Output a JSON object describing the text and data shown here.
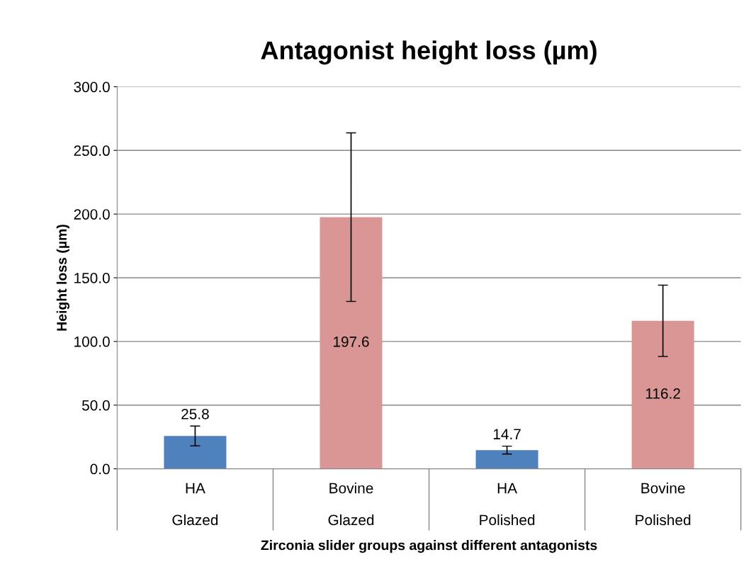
{
  "chart_data": {
    "type": "bar",
    "title": "Antagonist height loss (µm)",
    "xlabel": "Zirconia slider groups against different antagonists",
    "ylabel": "Height loss (µm)",
    "categories": [
      "HA\n\nGlazed",
      "Bovine\n\nGlazed",
      "HA\n\nPolished",
      "Bovine\n\nPolished"
    ],
    "values": [
      25.8,
      197.6,
      14.7,
      116.2
    ],
    "colors": [
      "#4f81bd",
      "#d99694",
      "#4f81bd",
      "#d99694"
    ],
    "errors": [
      7.8,
      66.2,
      3.1,
      28.0
    ],
    "data_labels": true,
    "ylim": [
      0,
      300
    ],
    "yticks": [
      {
        "value": 0,
        "label": "0.0"
      },
      {
        "value": 50,
        "label": "50.0"
      },
      {
        "value": 100,
        "label": "100.0"
      },
      {
        "value": 150,
        "label": "150.0"
      },
      {
        "value": 200,
        "label": "200.0"
      },
      {
        "value": 250,
        "label": "250.0"
      },
      {
        "value": 300,
        "label": "300.0"
      }
    ],
    "grid": "y",
    "legend": false
  }
}
